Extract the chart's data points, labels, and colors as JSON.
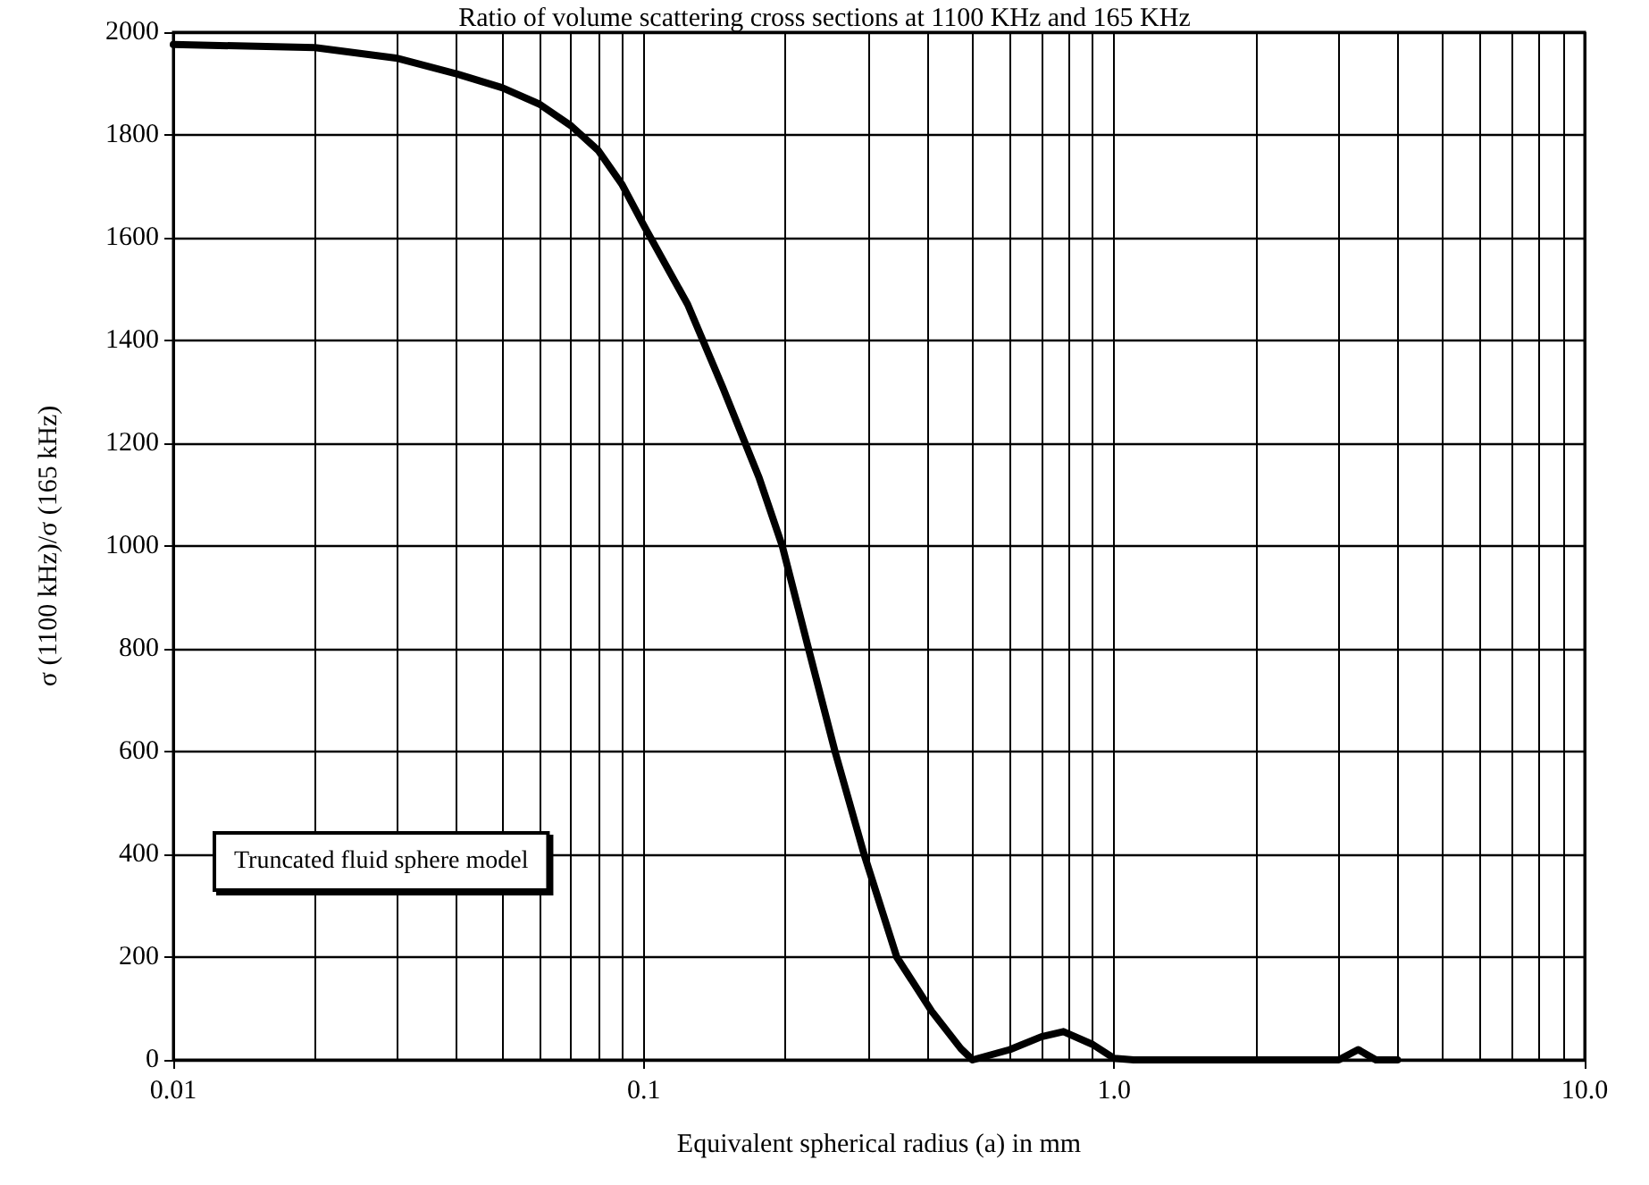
{
  "chart_data": {
    "type": "line",
    "title": "Ratio of volume scattering cross sections at 1100 KHz and 165 KHz",
    "xlabel": "Equivalent spherical radius (a) in mm",
    "ylabel": "σ (1100 kHz)/σ (165 kHz)",
    "annotations": [
      "Truncated fluid sphere model"
    ],
    "x": [
      0.01,
      0.02,
      0.03,
      0.04,
      0.05,
      0.06,
      0.07,
      0.08,
      0.09,
      0.1,
      0.124,
      0.147,
      0.176,
      0.197,
      0.224,
      0.255,
      0.294,
      0.345,
      0.409,
      0.472,
      0.5,
      0.6,
      0.7,
      0.78,
      0.9,
      1.0,
      1.1,
      2.0,
      3.0,
      3.3,
      3.6,
      4.0
    ],
    "series": [
      {
        "color": "#000000",
        "values": [
          1976,
          1970,
          1949,
          1919,
          1892,
          1860,
          1818,
          1770,
          1703,
          1624,
          1470,
          1310,
          1132,
          1000,
          800,
          600,
          400,
          200,
          95,
          22,
          0,
          20,
          45,
          55,
          30,
          3,
          0,
          0,
          0,
          20,
          0,
          0
        ]
      }
    ],
    "log": "x",
    "xlim": [
      0.01,
      10
    ],
    "xticks": [
      {
        "value": 0.01,
        "label": "0.01"
      },
      {
        "value": 0.1,
        "label": "0.1"
      },
      {
        "value": 1,
        "label": "1.0"
      },
      {
        "value": 10,
        "label": "10.0"
      }
    ],
    "ylim": [
      0,
      2000
    ],
    "yticks": [
      0,
      200,
      400,
      600,
      800,
      1000,
      1200,
      1400,
      1600,
      1800,
      2000
    ],
    "grid": true,
    "marker": "none",
    "line_style": "solid"
  }
}
